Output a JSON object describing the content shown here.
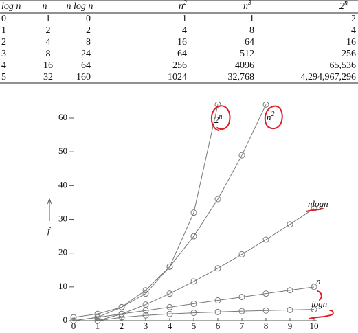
{
  "table": {
    "headers": [
      {
        "text": "log n"
      },
      {
        "text": "n"
      },
      {
        "text": "n log n"
      },
      {
        "text": "n",
        "sup": "2"
      },
      {
        "text": "n",
        "sup": "3"
      },
      {
        "text": "2",
        "sup": "n"
      }
    ],
    "rows": [
      [
        "0",
        "1",
        "0",
        "1",
        "1",
        "2"
      ],
      [
        "1",
        "2",
        "2",
        "4",
        "8",
        "4"
      ],
      [
        "2",
        "4",
        "8",
        "16",
        "64",
        "16"
      ],
      [
        "3",
        "8",
        "24",
        "64",
        "512",
        "256"
      ],
      [
        "4",
        "16",
        "64",
        "256",
        "4096",
        "65,536"
      ],
      [
        "5",
        "32",
        "160",
        "1024",
        "32,768",
        "4,294,967,296"
      ]
    ]
  },
  "chart_data": {
    "type": "line",
    "y_label": "f",
    "x": [
      0,
      1,
      2,
      3,
      4,
      5,
      6,
      7,
      8,
      9,
      10
    ],
    "series": [
      {
        "name": "logn",
        "color": "#777777",
        "values": [
          null,
          0,
          1,
          1.58,
          2,
          2.32,
          2.58,
          2.81,
          3,
          3.17,
          3.32
        ]
      },
      {
        "name": "n",
        "color": "#777777",
        "values": [
          0,
          1,
          2,
          3,
          4,
          5,
          6,
          7,
          8,
          9,
          10
        ]
      },
      {
        "name": "nlogn",
        "color": "#777777",
        "values": [
          null,
          0,
          2,
          4.75,
          8,
          11.61,
          15.51,
          19.65,
          24,
          28.53,
          33.22
        ]
      },
      {
        "name": "n",
        "sup": "2",
        "color": "#777777",
        "values": [
          0,
          1,
          4,
          9,
          16,
          25,
          36,
          49,
          64,
          null,
          null
        ]
      },
      {
        "name": "2",
        "sup": "n",
        "color": "#777777",
        "values": [
          1,
          2,
          4,
          8,
          16,
          32,
          64,
          null,
          null,
          null,
          null
        ]
      }
    ],
    "xlim": [
      0,
      10
    ],
    "xticks": [
      0,
      1,
      2,
      3,
      4,
      5,
      6,
      7,
      8,
      9,
      10
    ],
    "ylim": [
      0,
      60
    ],
    "yticks": [
      0,
      10,
      20,
      30,
      40,
      50,
      60
    ]
  }
}
